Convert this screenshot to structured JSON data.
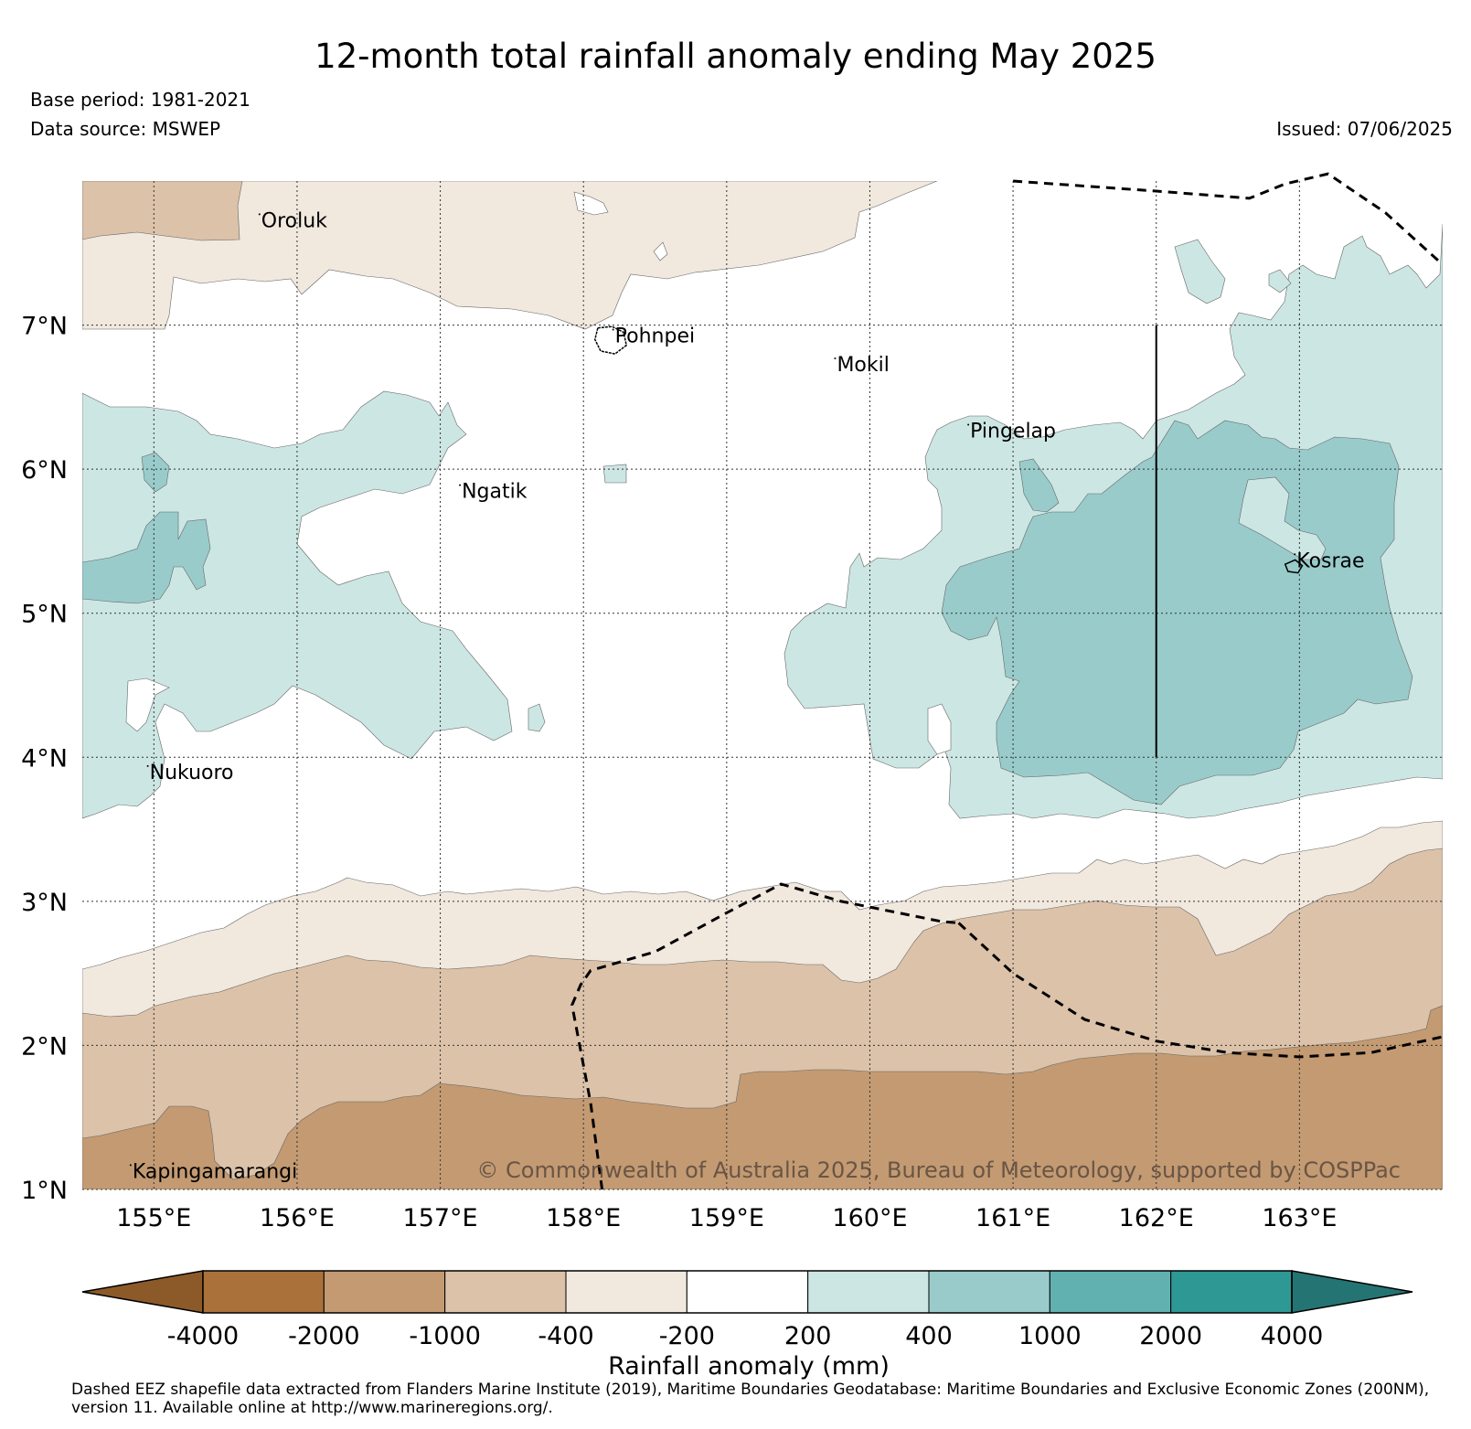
{
  "title": "12-month total rainfall anomaly ending May 2025",
  "base_period": "Base period: 1981-2021",
  "data_source": "Data source: MSWEP",
  "issued": "Issued: 07/06/2025",
  "copyright": "© Commonwealth of Australia 2025, Bureau of Meteorology, supported by COSPPac",
  "axes": {
    "lon_ticks": [
      "155°E",
      "156°E",
      "157°E",
      "158°E",
      "159°E",
      "160°E",
      "161°E",
      "162°E",
      "163°E"
    ],
    "lat_ticks": [
      "7°N",
      "6°N",
      "5°N",
      "4°N",
      "3°N",
      "2°N",
      "1°N"
    ],
    "lon_range": [
      154.5,
      164.0
    ],
    "lat_range": [
      1.0,
      8.0
    ],
    "grid": "dotted"
  },
  "places": [
    {
      "name": "Oroluk",
      "lon": 155.75,
      "lat": 7.68
    },
    {
      "name": "Pohnpei",
      "lon": 158.22,
      "lat": 6.88
    },
    {
      "name": "Mokil",
      "lon": 159.77,
      "lat": 6.68
    },
    {
      "name": "Pingelap",
      "lon": 160.7,
      "lat": 6.22
    },
    {
      "name": "Ngatik",
      "lon": 157.15,
      "lat": 5.8
    },
    {
      "name": "Kosrae",
      "lon": 162.98,
      "lat": 5.32
    },
    {
      "name": "Nukuoro",
      "lon": 154.97,
      "lat": 3.85
    },
    {
      "name": "Kapingamarangi",
      "lon": 154.85,
      "lat": 1.08
    }
  ],
  "colorbar": {
    "label": "Rainfall anomaly (mm)",
    "tick_labels": [
      "-4000",
      "-2000",
      "-1000",
      "-400",
      "-200",
      "200",
      "400",
      "1000",
      "2000",
      "4000"
    ],
    "colors": [
      "#8c5a28",
      "#ab713a",
      "#c39a72",
      "#dbc2a9",
      "#f1e8de",
      "#ffffff",
      "#cce6e4",
      "#99cbcb",
      "#62b1b1",
      "#2e9895",
      "#247473"
    ]
  },
  "footnote": "Dashed EEZ shapefile data extracted from Flanders Marine Institute (2019), Maritime Boundaries Geodatabase: Maritime Boundaries and Exclusive Economic Zones (200NM), version 11. Available online at http://www.marineregions.org/."
}
